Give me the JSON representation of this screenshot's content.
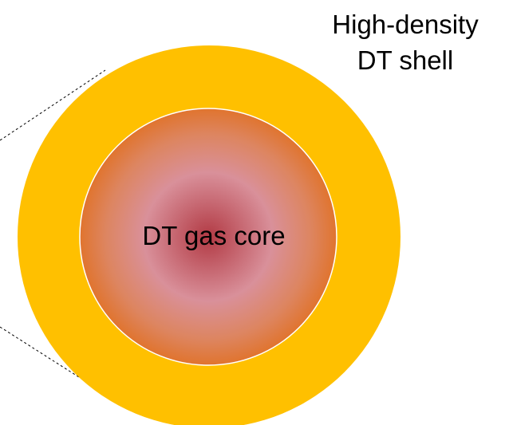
{
  "shell": {
    "label": [
      "High-density",
      "DT shell"
    ]
  },
  "core": {
    "label": "DT gas core"
  }
}
